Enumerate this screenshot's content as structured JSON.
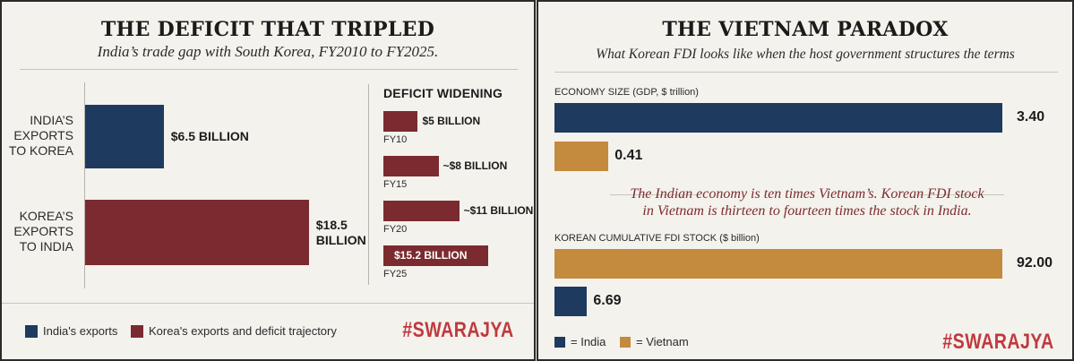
{
  "colors": {
    "india": "#1e3a5f",
    "korea": "#7b2b2f",
    "vietnam": "#c48a3e",
    "brand": "#c0393e"
  },
  "left": {
    "title": "THE DEFICIT THAT TRIPLED",
    "subtitle": "India’s trade gap with South Korea, FY2010 to FY2025.",
    "widening_heading": "DEFICIT WIDENING",
    "legend": [
      {
        "label": "India's exports",
        "color": "#1e3a5f"
      },
      {
        "label": "Korea's exports and deficit trajectory",
        "color": "#7b2b2f"
      }
    ],
    "brand": "#SWARAJYA"
  },
  "right": {
    "title": "THE VIETNAM PARADOX",
    "subtitle": "What Korean FDI looks like when the host government structures the terms",
    "callout_line1": "The Indian economy is ten times Vietnam’s. Korean FDI stock",
    "callout_line2": "in Vietnam is thirteen to fourteen times the stock in India.",
    "legend": [
      {
        "label": "= India",
        "color": "#1e3a5f"
      },
      {
        "label": "= Vietnam",
        "color": "#c48a3e"
      }
    ],
    "brand": "#SWARAJYA"
  },
  "chart_data": [
    {
      "type": "bar",
      "orientation": "horizontal",
      "title": "THE DEFICIT THAT TRIPLED",
      "categories": [
        "INDIA'S EXPORTS TO KOREA",
        "KOREA'S EXPORTS TO INDIA"
      ],
      "category_lines": [
        [
          "INDIA'S",
          "EXPORTS",
          "TO KOREA"
        ],
        [
          "KOREA'S",
          "EXPORTS",
          "TO INDIA"
        ]
      ],
      "values": [
        6.5,
        18.5
      ],
      "value_labels": [
        [
          "$6.5 BILLION"
        ],
        [
          "$18.5",
          "BILLION"
        ]
      ],
      "colors": [
        "#1e3a5f",
        "#7b2b2f"
      ],
      "xlim": [
        0,
        20
      ],
      "unit": "$ billion"
    },
    {
      "type": "bar",
      "orientation": "horizontal",
      "title": "DEFICIT WIDENING",
      "categories": [
        "FY10",
        "FY15",
        "FY20",
        "FY25"
      ],
      "values": [
        5,
        8,
        11,
        15.2
      ],
      "value_labels": [
        "$5 BILLION",
        "~$8 BILLION",
        "~$11 BILLION",
        "$15.2 BILLION"
      ],
      "xlim": [
        0,
        15.2
      ],
      "unit": "$ billion"
    },
    {
      "type": "bar",
      "orientation": "horizontal",
      "title": "ECONOMY SIZE (GDP, $ trillion)",
      "series": [
        {
          "name": "India",
          "values": [
            3.4
          ],
          "label": "3.40"
        },
        {
          "name": "Vietnam",
          "values": [
            0.41
          ],
          "label": "0.41"
        }
      ],
      "xlim": [
        0,
        3.4
      ],
      "unit": "$ trillion"
    },
    {
      "type": "bar",
      "orientation": "horizontal",
      "title": "KOREAN CUMULATIVE FDI STOCK ($ billion)",
      "series": [
        {
          "name": "Vietnam",
          "values": [
            92.0
          ],
          "label": "92.00"
        },
        {
          "name": "India",
          "values": [
            6.69
          ],
          "label": "6.69"
        }
      ],
      "xlim": [
        0,
        92
      ],
      "unit": "$ billion"
    }
  ]
}
